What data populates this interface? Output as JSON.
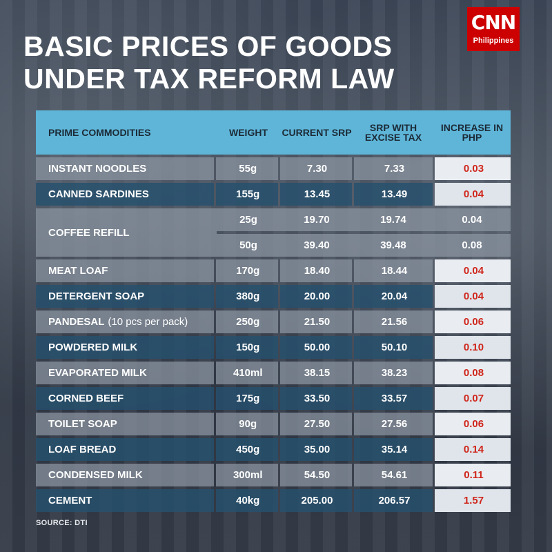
{
  "title_line1": "BASIC PRICES OF GOODS",
  "title_line2": "UNDER TAX REFORM LAW",
  "logo": {
    "mark": "CNN",
    "sub": "Philippines"
  },
  "headers": {
    "commodity": "PRIME COMMODITIES",
    "weight": "WEIGHT",
    "current_srp": "CURRENT SRP",
    "srp_excise": "SRP WITH EXCISE TAX",
    "increase": "INCREASE IN PHP"
  },
  "rows": [
    {
      "name": "INSTANT NOODLES",
      "weight": "55g",
      "current": "7.30",
      "with_tax": "7.33",
      "increase": "0.03"
    },
    {
      "name": "CANNED SARDINES",
      "weight": "155g",
      "current": "13.45",
      "with_tax": "13.49",
      "increase": "0.04"
    },
    {
      "name": "MEAT LOAF",
      "weight": "170g",
      "current": "18.40",
      "with_tax": "18.44",
      "increase": "0.04"
    },
    {
      "name": "DETERGENT SOAP",
      "weight": "380g",
      "current": "20.00",
      "with_tax": "20.04",
      "increase": "0.04"
    },
    {
      "name": "PANDESAL",
      "note": "(10 pcs per pack)",
      "weight": "250g",
      "current": "21.50",
      "with_tax": "21.56",
      "increase": "0.06"
    },
    {
      "name": "POWDERED MILK",
      "weight": "150g",
      "current": "50.00",
      "with_tax": "50.10",
      "increase": "0.10"
    },
    {
      "name": "EVAPORATED MILK",
      "weight": "410ml",
      "current": "38.15",
      "with_tax": "38.23",
      "increase": "0.08"
    },
    {
      "name": "CORNED BEEF",
      "weight": "175g",
      "current": "33.50",
      "with_tax": "33.57",
      "increase": "0.07"
    },
    {
      "name": "TOILET SOAP",
      "weight": "90g",
      "current": "27.50",
      "with_tax": "27.56",
      "increase": "0.06"
    },
    {
      "name": "LOAF BREAD",
      "weight": "450g",
      "current": "35.00",
      "with_tax": "35.14",
      "increase": "0.14"
    },
    {
      "name": "CONDENSED MILK",
      "weight": "300ml",
      "current": "54.50",
      "with_tax": "54.61",
      "increase": "0.11"
    },
    {
      "name": "CEMENT",
      "weight": "40kg",
      "current": "205.00",
      "with_tax": "206.57",
      "increase": "1.57"
    }
  ],
  "coffee": {
    "name": "COFFEE REFILL",
    "variants": [
      {
        "weight": "25g",
        "current": "19.70",
        "with_tax": "19.74",
        "increase": "0.04"
      },
      {
        "weight": "50g",
        "current": "39.40",
        "with_tax": "39.48",
        "increase": "0.08"
      }
    ]
  },
  "source": "SOURCE: DTI",
  "colors": {
    "header": "#5eb5d8",
    "increase_text": "#d0261c",
    "logo": "#cc0000"
  }
}
